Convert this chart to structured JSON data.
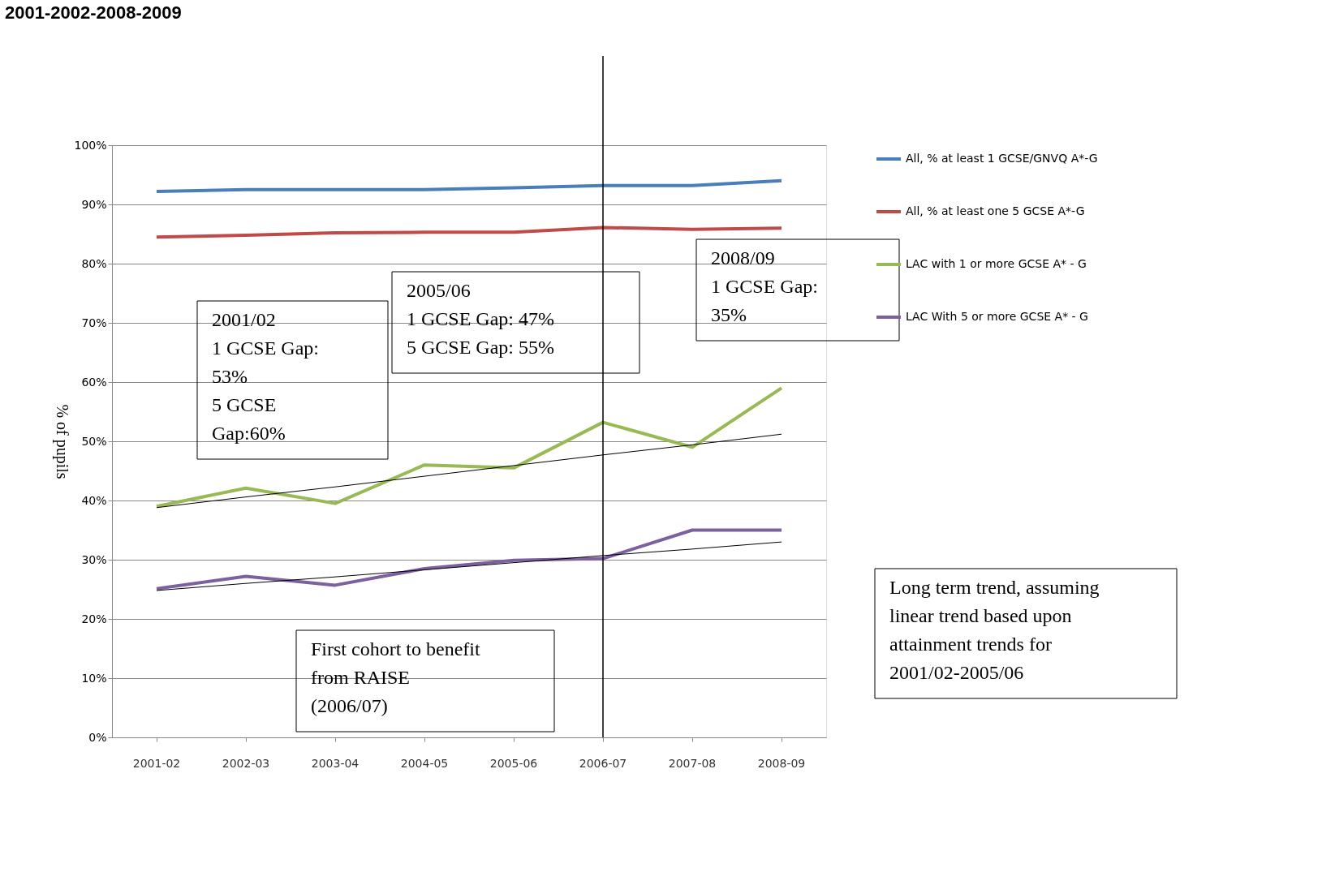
{
  "chart_data": {
    "type": "line",
    "title": "2001-2002-2008-2009",
    "ylabel": "% of pupils",
    "categories": [
      "2001-02",
      "2002-03",
      "2003-04",
      "2004-05",
      "2005-06",
      "2006-07",
      "2007-08",
      "2008-09"
    ],
    "series": [
      {
        "name": "All, % at least 1 GCSE/GNVQ A*-G",
        "color": "#4a7ebb",
        "values": [
          92.2,
          92.5,
          92.5,
          92.5,
          92.8,
          93.2,
          93.2,
          94.0
        ]
      },
      {
        "name": "All, % at least one 5 GCSE A*-G",
        "color": "#be4b48",
        "values": [
          84.5,
          84.8,
          85.2,
          85.3,
          85.3,
          86.1,
          85.8,
          86.0
        ]
      },
      {
        "name": "LAC with 1 or more GCSE A* - G",
        "color": "#98b954",
        "values": [
          39.0,
          42.1,
          39.5,
          46.0,
          45.5,
          53.2,
          49.0,
          59.0
        ]
      },
      {
        "name": "LAC With 5 or more GCSE A* - G",
        "color": "#7d60a0",
        "values": [
          25.1,
          27.2,
          25.7,
          28.5,
          29.9,
          30.2,
          35.0,
          35.0
        ]
      },
      {
        "type": "line",
        "color": "#000000",
        "line_style": "solid",
        "values": [
          38.8,
          40.6,
          42.3,
          44.1,
          45.9,
          47.7,
          49.4,
          51.2
        ]
      },
      {
        "type": "line",
        "color": "#000000",
        "line_style": "solid",
        "values": [
          24.8,
          26.0,
          27.1,
          28.3,
          29.5,
          30.7,
          31.8,
          33.0
        ]
      }
    ],
    "ylim": [
      0,
      100
    ],
    "yticks": [
      {
        "value": 0,
        "label": "0%"
      },
      {
        "value": 10,
        "label": "10%"
      },
      {
        "value": 20,
        "label": "20%"
      },
      {
        "value": 30,
        "label": "30%"
      },
      {
        "value": 40,
        "label": "40%"
      },
      {
        "value": 50,
        "label": "50%"
      },
      {
        "value": 60,
        "label": "60%"
      },
      {
        "value": 70,
        "label": "70%"
      },
      {
        "value": 80,
        "label": "80%"
      },
      {
        "value": 90,
        "label": "90%"
      },
      {
        "value": 100,
        "label": "100%"
      }
    ],
    "grid": "y",
    "legend": "right",
    "marker": "none",
    "ref_lines": [
      {
        "axis": "x",
        "value": "2006-07",
        "color": "#000000"
      }
    ],
    "annotations": [
      "2001/02\n1 GCSE Gap:\n53%\n5 GCSE\nGap:60%",
      "2005/06\n1 GCSE Gap: 47%\n5 GCSE Gap: 55%",
      "2008/09\n1 GCSE Gap:\n35%",
      "First cohort to benefit\nfrom RAISE\n(2006/07)",
      "Long term trend, assuming\nlinear trend based upon\nattainment trends for\n2001/02-2005/06"
    ]
  }
}
